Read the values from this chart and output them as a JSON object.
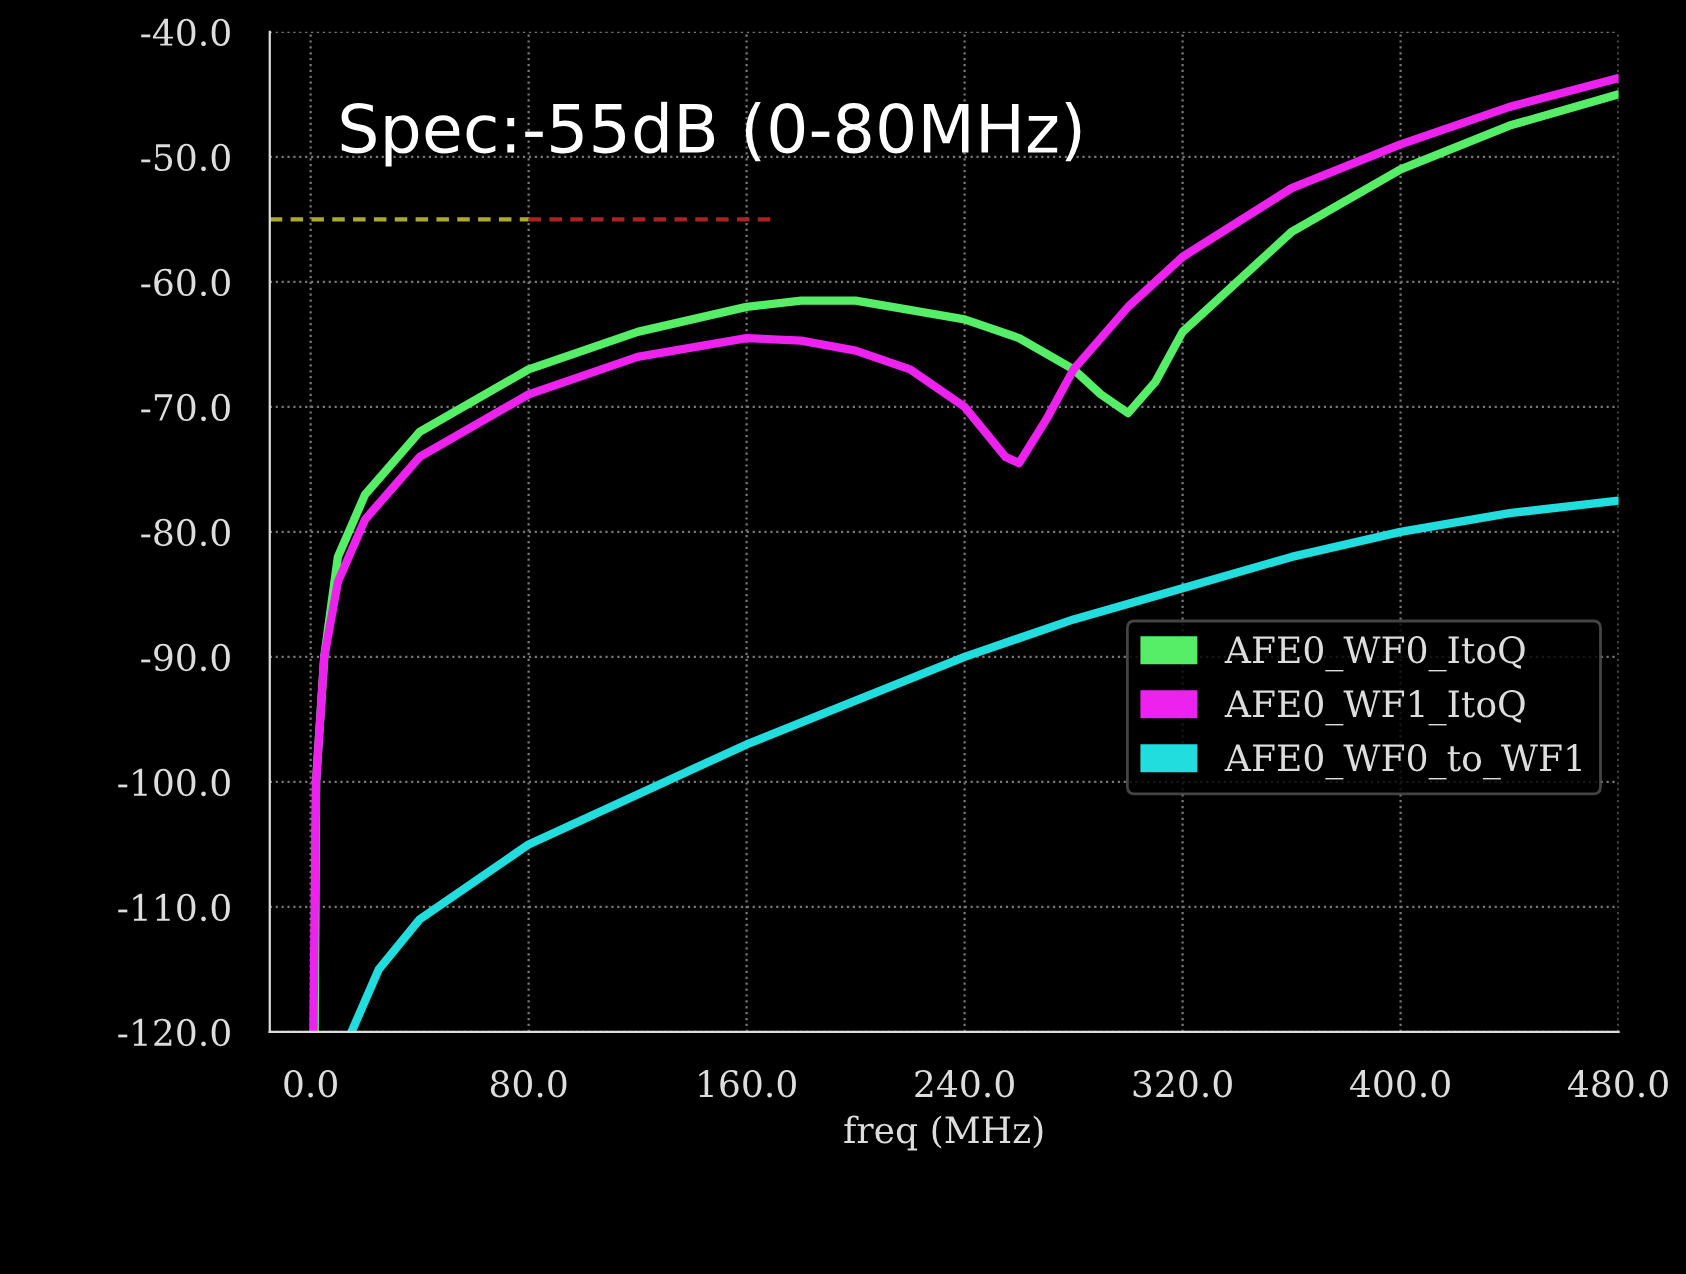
{
  "chart_data": {
    "type": "line",
    "xlabel": "freq (MHz)",
    "xlim": [
      -15,
      480
    ],
    "xticks": [
      {
        "value": 0,
        "label": "0.0"
      },
      {
        "value": 80,
        "label": "80.0"
      },
      {
        "value": 160,
        "label": "160.0"
      },
      {
        "value": 240,
        "label": "240.0"
      },
      {
        "value": 320,
        "label": "320.0"
      },
      {
        "value": 400,
        "label": "400.0"
      },
      {
        "value": 480,
        "label": "480.0"
      }
    ],
    "ylim": [
      -120,
      -40
    ],
    "yticks": [
      {
        "value": -120,
        "label": "-120.0"
      },
      {
        "value": -110,
        "label": "-110.0"
      },
      {
        "value": -100,
        "label": "-100.0"
      },
      {
        "value": -90,
        "label": "-90.0"
      },
      {
        "value": -80,
        "label": "-80.0"
      },
      {
        "value": -70,
        "label": "-70.0"
      },
      {
        "value": -60,
        "label": "-60.0"
      },
      {
        "value": -50,
        "label": "-50.0"
      },
      {
        "value": -40,
        "label": "-40.0"
      }
    ],
    "grid": true,
    "legend": "lower right",
    "marker": "none",
    "line_style": "solid",
    "annotations": [
      "Spec:-55dB (0-80MHz)"
    ],
    "series": [
      {
        "name": "AFE0_WF0_ItoQ",
        "color": "#55ee66",
        "x": [
          1.5,
          2,
          5,
          10,
          20,
          40,
          80,
          120,
          160,
          180,
          200,
          240,
          260,
          280,
          290,
          300,
          310,
          320,
          360,
          400,
          440,
          480
        ],
        "values": [
          -120,
          -100,
          -90,
          -82,
          -77,
          -72,
          -67,
          -64,
          -62,
          -61.5,
          -61.5,
          -63,
          -64.5,
          -67,
          -69,
          -70.5,
          -68,
          -64,
          -56,
          -51,
          -47.5,
          -45
        ]
      },
      {
        "name": "AFE0_WF1_ItoQ",
        "color": "#ee22ee",
        "x": [
          1,
          2,
          5,
          10,
          20,
          40,
          80,
          120,
          160,
          180,
          200,
          220,
          240,
          255,
          260,
          270,
          280,
          300,
          320,
          360,
          400,
          440,
          480
        ],
        "values": [
          -120,
          -100,
          -90,
          -84,
          -79,
          -74,
          -69,
          -66,
          -64.5,
          -64.7,
          -65.5,
          -67,
          -70,
          -74,
          -74.5,
          -71,
          -67,
          -62,
          -58,
          -52.5,
          -49,
          -46,
          -43.7
        ]
      },
      {
        "name": "AFE0_WF0_to_WF1",
        "color": "#22dddd",
        "x": [
          15,
          25,
          40,
          80,
          120,
          160,
          200,
          240,
          280,
          320,
          360,
          400,
          440,
          480
        ],
        "values": [
          -120,
          -115,
          -111,
          -105,
          -101,
          -97,
          -93.5,
          -90,
          -87,
          -84.5,
          -82,
          -80,
          -78.5,
          -77.5
        ]
      },
      {
        "color": "#aaaa33",
        "line_style": "dashed",
        "x": [
          -15,
          80
        ],
        "values": [
          -55,
          -55
        ]
      },
      {
        "color": "#aa2222",
        "line_style": "dashed",
        "x": [
          80,
          170
        ],
        "values": [
          -55,
          -55
        ]
      }
    ]
  }
}
